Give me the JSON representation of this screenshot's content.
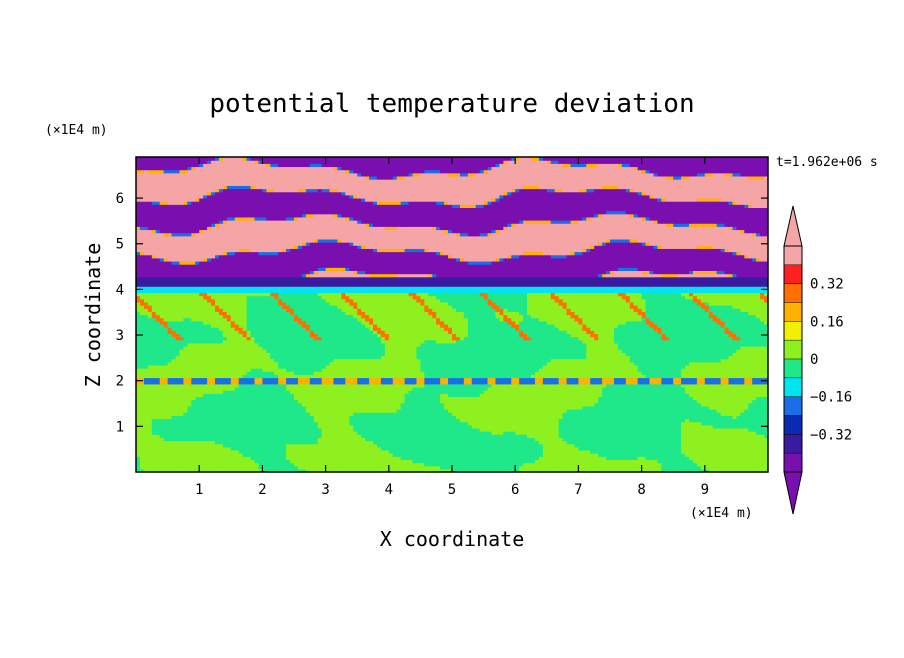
{
  "chart_data": {
    "type": "heatmap",
    "title": "potential temperature deviation",
    "xlabel": "X coordinate",
    "ylabel": "Z coordinate",
    "x_unit": "(×1E4 m)",
    "y_unit": "(×1E4 m)",
    "time_label": "t=1.962e+06 s",
    "xlim": [
      0,
      10
    ],
    "ylim": [
      0,
      6.9
    ],
    "x_ticks": [
      "1",
      "2",
      "3",
      "4",
      "5",
      "6",
      "7",
      "8",
      "9"
    ],
    "y_ticks": [
      "1",
      "2",
      "3",
      "4",
      "5",
      "6"
    ],
    "colorbar": {
      "levels": [
        -0.48,
        -0.4,
        -0.32,
        -0.24,
        -0.16,
        -0.08,
        0,
        0.08,
        0.16,
        0.24,
        0.32,
        0.4,
        0.48
      ],
      "labels": [
        "0.32",
        "0.16",
        "0",
        "−0.16",
        "−0.32"
      ],
      "label_values": [
        0.32,
        0.16,
        0,
        -0.16,
        -0.32
      ],
      "colors": [
        "#7a0fb0",
        "#3a1aa0",
        "#0a2ab0",
        "#1a6ee8",
        "#00e5f0",
        "#1ee88a",
        "#8ef01e",
        "#f0f000",
        "#ffb000",
        "#ff7000",
        "#ff2020",
        "#f5a5a5"
      ],
      "under_color": "#7a0fb0",
      "over_color": "#f5a5a5"
    },
    "layers": [
      {
        "z": [
          0,
          1.9
        ],
        "value_range": [
          -0.08,
          0.08
        ],
        "pattern": "green / light-green mix"
      },
      {
        "z": [
          2.0,
          2.1
        ],
        "value": -0.2,
        "pattern": "thin blue streak"
      },
      {
        "z": [
          2.1,
          3.9
        ],
        "value_range": [
          -0.08,
          0.08
        ],
        "pattern": "green / light-green mix"
      },
      {
        "z": [
          3.9,
          4.1
        ],
        "value": -0.14,
        "pattern": "cyan band"
      },
      {
        "z": [
          4.1,
          4.25
        ],
        "value": -0.4,
        "pattern": "dark blue band"
      },
      {
        "z": [
          4.25,
          6.9
        ],
        "value_range": [
          -0.48,
          0.48
        ],
        "pattern": "alternating purple / pink stripes"
      }
    ]
  }
}
